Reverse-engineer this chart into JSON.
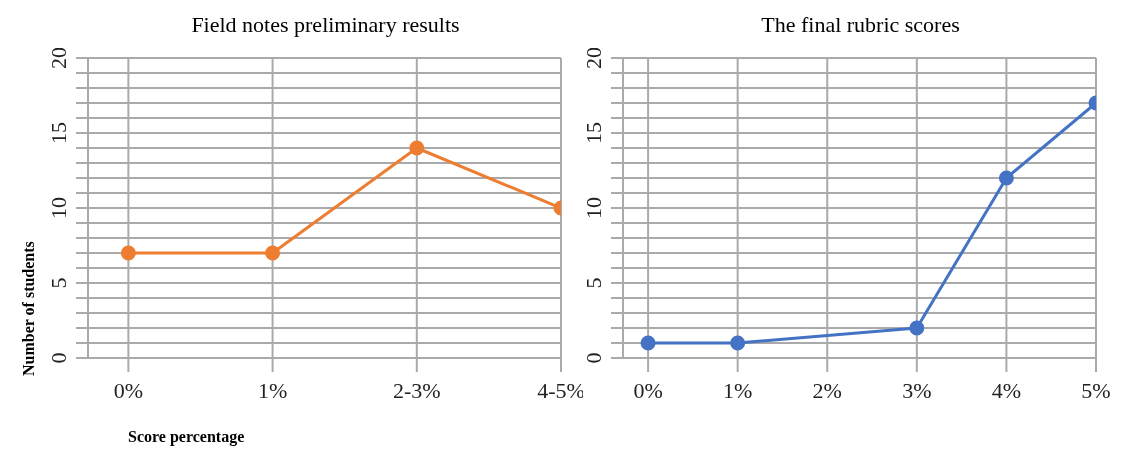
{
  "chart_data": [
    {
      "type": "line",
      "title": "Field notes preliminary results",
      "xlabel": "Score percentage",
      "ylabel": "Number of students",
      "categories": [
        "0%",
        "1%",
        "2-3%",
        "4-5%"
      ],
      "series": [
        {
          "color": "#ed7d31",
          "values": [
            7,
            7,
            14,
            10
          ]
        }
      ],
      "ylim": [
        0,
        20
      ],
      "yticks": [
        0,
        {
          "value": 1,
          "label": null
        },
        {
          "value": 2,
          "label": null
        },
        {
          "value": 3,
          "label": null
        },
        {
          "value": 4,
          "label": null
        },
        5,
        {
          "value": 6,
          "label": null
        },
        {
          "value": 7,
          "label": null
        },
        {
          "value": 8,
          "label": null
        },
        {
          "value": 9,
          "label": null
        },
        10,
        {
          "value": 11,
          "label": null
        },
        {
          "value": 12,
          "label": null
        },
        {
          "value": 13,
          "label": null
        },
        {
          "value": 14,
          "label": null
        },
        15,
        {
          "value": 16,
          "label": null
        },
        {
          "value": 17,
          "label": null
        },
        {
          "value": 18,
          "label": null
        },
        {
          "value": 19,
          "label": null
        },
        20
      ],
      "grid": true,
      "marker": "circle",
      "line_style": "solid",
      "legend": false
    },
    {
      "type": "line",
      "title": "The final rubric scores",
      "categories": [
        "0%",
        "1%",
        "2%",
        "3%",
        "4%",
        "5%"
      ],
      "series": [
        {
          "color": "#4472c4",
          "values": [
            1,
            1,
            null,
            2,
            12,
            17
          ]
        }
      ],
      "ylim": [
        0,
        20
      ],
      "yticks": [
        0,
        {
          "value": 1,
          "label": null
        },
        {
          "value": 2,
          "label": null
        },
        {
          "value": 3,
          "label": null
        },
        {
          "value": 4,
          "label": null
        },
        5,
        {
          "value": 6,
          "label": null
        },
        {
          "value": 7,
          "label": null
        },
        {
          "value": 8,
          "label": null
        },
        {
          "value": 9,
          "label": null
        },
        10,
        {
          "value": 11,
          "label": null
        },
        {
          "value": 12,
          "label": null
        },
        {
          "value": 13,
          "label": null
        },
        {
          "value": 14,
          "label": null
        },
        15,
        {
          "value": 16,
          "label": null
        },
        {
          "value": 17,
          "label": null
        },
        {
          "value": 18,
          "label": null
        },
        {
          "value": 19,
          "label": null
        },
        20
      ],
      "grid": true,
      "marker": "circle",
      "line_style": "solid",
      "legend": false
    }
  ]
}
